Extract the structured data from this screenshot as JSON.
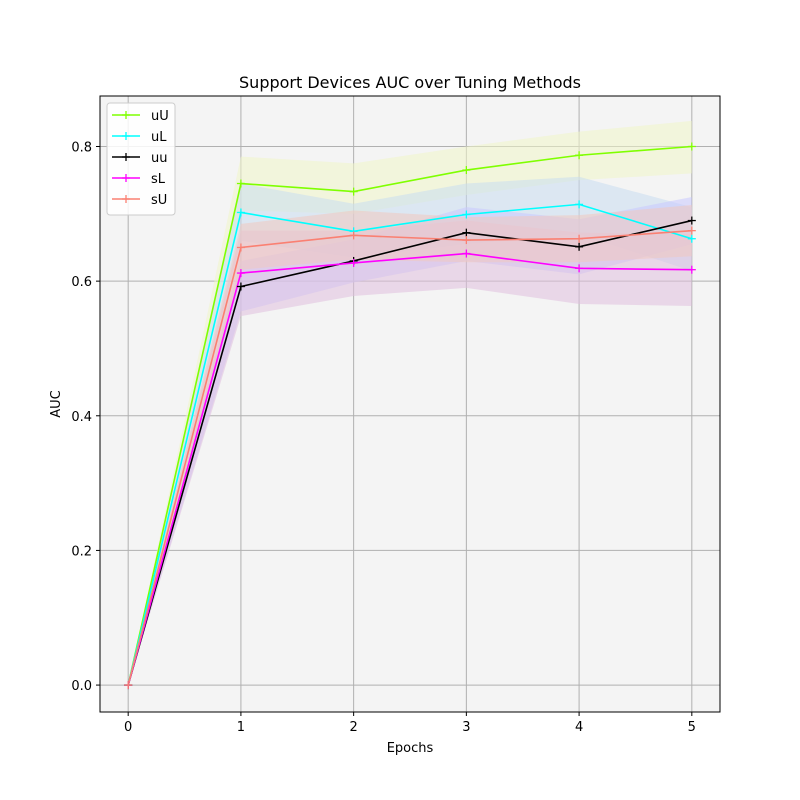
{
  "chart_data": {
    "type": "line",
    "title": "Support Devices AUC over Tuning Methods",
    "xlabel": "Epochs",
    "ylabel": "AUC",
    "x": [
      0,
      1,
      2,
      3,
      4,
      5
    ],
    "xlim": [
      -0.25,
      5.25
    ],
    "ylim": [
      -0.04,
      0.875
    ],
    "xticks": [
      "0",
      "1",
      "2",
      "3",
      "4",
      "5"
    ],
    "yticks": [
      "0.0",
      "0.2",
      "0.4",
      "0.6",
      "0.8"
    ],
    "ytick_values": [
      0.0,
      0.2,
      0.4,
      0.6,
      0.8
    ],
    "grid": true,
    "legend_position": "top-left",
    "background_color": "#f4f4f4",
    "series": [
      {
        "name": "uU",
        "color": "#7fff00",
        "band_color": "#f0f5c8",
        "values": [
          0.0,
          0.745,
          0.733,
          0.765,
          0.787,
          0.8
        ],
        "lower": [
          0.0,
          0.705,
          0.7,
          0.728,
          0.75,
          0.76
        ],
        "upper": [
          0.0,
          0.785,
          0.775,
          0.8,
          0.822,
          0.838
        ]
      },
      {
        "name": "uL",
        "color": "#00ffff",
        "band_color": "#c8dcf0",
        "values": [
          0.0,
          0.702,
          0.674,
          0.699,
          0.714,
          0.663
        ],
        "lower": [
          0.0,
          0.66,
          0.635,
          0.655,
          0.67,
          0.615
        ],
        "upper": [
          0.0,
          0.745,
          0.715,
          0.745,
          0.755,
          0.71
        ]
      },
      {
        "name": "uu",
        "color": "#000000",
        "band_color": "#c8c8ff",
        "values": [
          0.0,
          0.592,
          0.63,
          0.672,
          0.651,
          0.69
        ],
        "lower": [
          0.0,
          0.555,
          0.598,
          0.63,
          0.61,
          0.655
        ],
        "upper": [
          0.0,
          0.63,
          0.662,
          0.71,
          0.692,
          0.725
        ]
      },
      {
        "name": "sL",
        "color": "#ff00ff",
        "band_color": "#e0bfdf",
        "values": [
          0.0,
          0.612,
          0.627,
          0.641,
          0.619,
          0.617
        ],
        "lower": [
          0.0,
          0.548,
          0.578,
          0.59,
          0.566,
          0.563
        ],
        "upper": [
          0.0,
          0.675,
          0.675,
          0.69,
          0.672,
          0.67
        ]
      },
      {
        "name": "sU",
        "color": "#fa8072",
        "band_color": "#f0c8c0",
        "values": [
          0.0,
          0.65,
          0.668,
          0.661,
          0.663,
          0.675
        ],
        "lower": [
          0.0,
          0.617,
          0.632,
          0.628,
          0.628,
          0.637
        ],
        "upper": [
          0.0,
          0.685,
          0.705,
          0.695,
          0.698,
          0.713
        ]
      }
    ]
  }
}
